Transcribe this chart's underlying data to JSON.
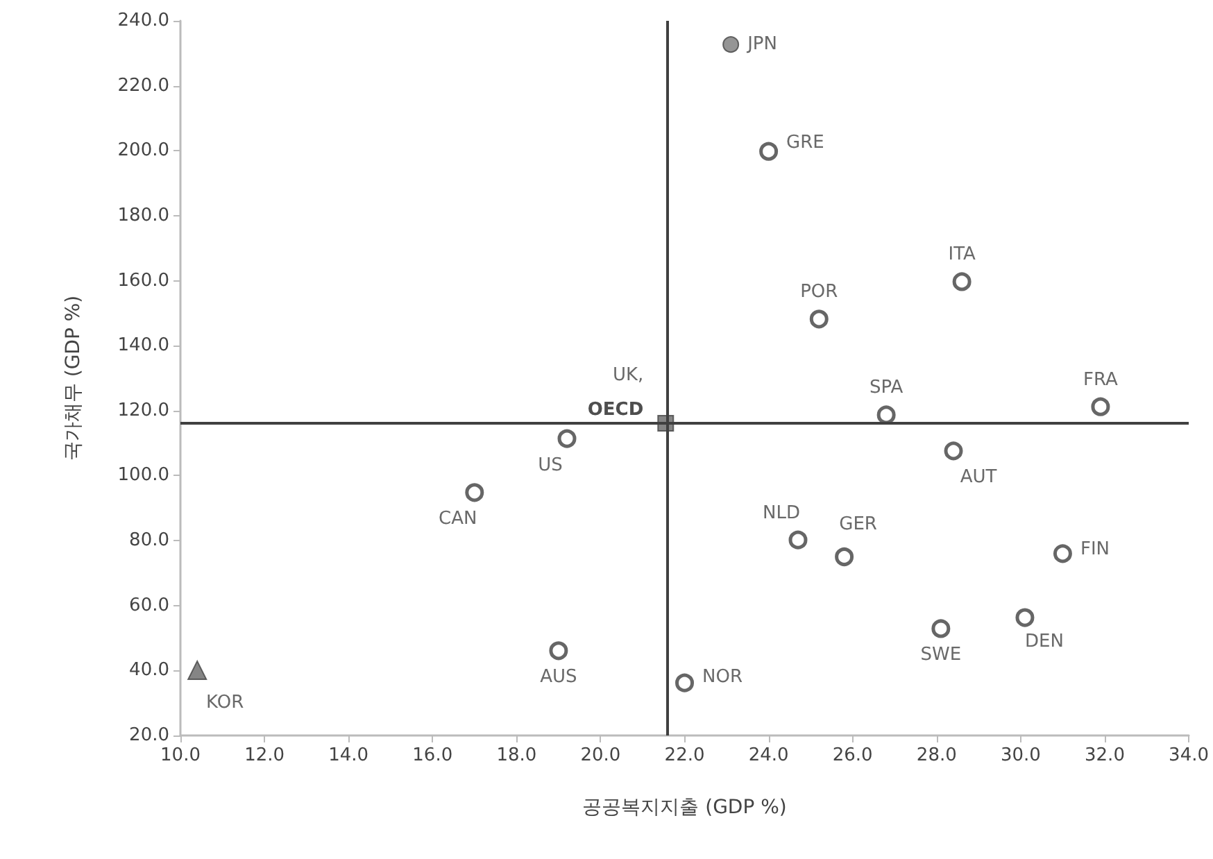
{
  "chart_data": {
    "type": "scatter",
    "xlabel": "공공복지지출 (GDP %)",
    "ylabel": "국가채무 (GDP %)",
    "xlim": [
      10,
      34
    ],
    "xticks": [
      {
        "value": 10,
        "label": "10.0"
      },
      {
        "value": 12,
        "label": "12.0"
      },
      {
        "value": 14,
        "label": "14.0"
      },
      {
        "value": 16,
        "label": "16.0"
      },
      {
        "value": 18,
        "label": "18.0"
      },
      {
        "value": 20,
        "label": "20.0"
      },
      {
        "value": 22,
        "label": "22.0"
      },
      {
        "value": 24,
        "label": "24.0"
      },
      {
        "value": 26,
        "label": "26.0"
      },
      {
        "value": 28,
        "label": "28.0"
      },
      {
        "value": 30,
        "label": "30.0"
      },
      {
        "value": 32,
        "label": "32.0"
      },
      {
        "value": 34,
        "label": "34.0"
      }
    ],
    "ylim": [
      20,
      240
    ],
    "yticks": [
      {
        "value": 20,
        "label": "20.0"
      },
      {
        "value": 40,
        "label": "40.0"
      },
      {
        "value": 60,
        "label": "60.0"
      },
      {
        "value": 80,
        "label": "80.0"
      },
      {
        "value": 100,
        "label": "100.0"
      },
      {
        "value": 120,
        "label": "120.0"
      },
      {
        "value": 140,
        "label": "140.0"
      },
      {
        "value": 160,
        "label": "160.0"
      },
      {
        "value": 180,
        "label": "180.0"
      },
      {
        "value": 200,
        "label": "200.0"
      },
      {
        "value": 220,
        "label": "220.0"
      },
      {
        "value": 240,
        "label": "240.0"
      }
    ],
    "grid": false,
    "ref_lines": [
      {
        "axis": "x",
        "value": 21.6,
        "color": "#404040"
      },
      {
        "axis": "y",
        "value": 116.2,
        "color": "#404040"
      }
    ],
    "series": [
      {
        "marker": "circle",
        "color": "#404040",
        "x": [
          24.0,
          28.6,
          25.2,
          26.8,
          31.9,
          28.4,
          19.2,
          17.0,
          24.7,
          25.8,
          31.0,
          30.1,
          28.1,
          19.0,
          22.0
        ],
        "values": [
          199.8,
          159.7,
          148.2,
          118.7,
          121.2,
          107.6,
          111.4,
          94.8,
          80.2,
          75.0,
          76.0,
          56.3,
          52.9,
          46.1,
          36.2
        ],
        "value_labels": [
          "GRE",
          "ITA",
          "POR",
          "SPA",
          "FRA",
          "AUT",
          "US",
          "CAN",
          "NLD",
          "GER",
          "FIN",
          "DEN",
          "SWE",
          "AUS",
          "NOR"
        ]
      },
      {
        "marker": "circle",
        "color": "#7a7a7a",
        "x": [
          23.1
        ],
        "values": [
          232.7
        ],
        "value_labels": [
          "JPN"
        ]
      },
      {
        "marker": "square",
        "color": "#666666",
        "x": [
          21.55
        ],
        "values": [
          116.1
        ],
        "value_labels": [
          "UK,\nOECD"
        ]
      },
      {
        "marker": "triangle",
        "color": "#666666",
        "x": [
          10.4
        ],
        "values": [
          40.1
        ],
        "value_labels": [
          "KOR"
        ]
      }
    ]
  }
}
